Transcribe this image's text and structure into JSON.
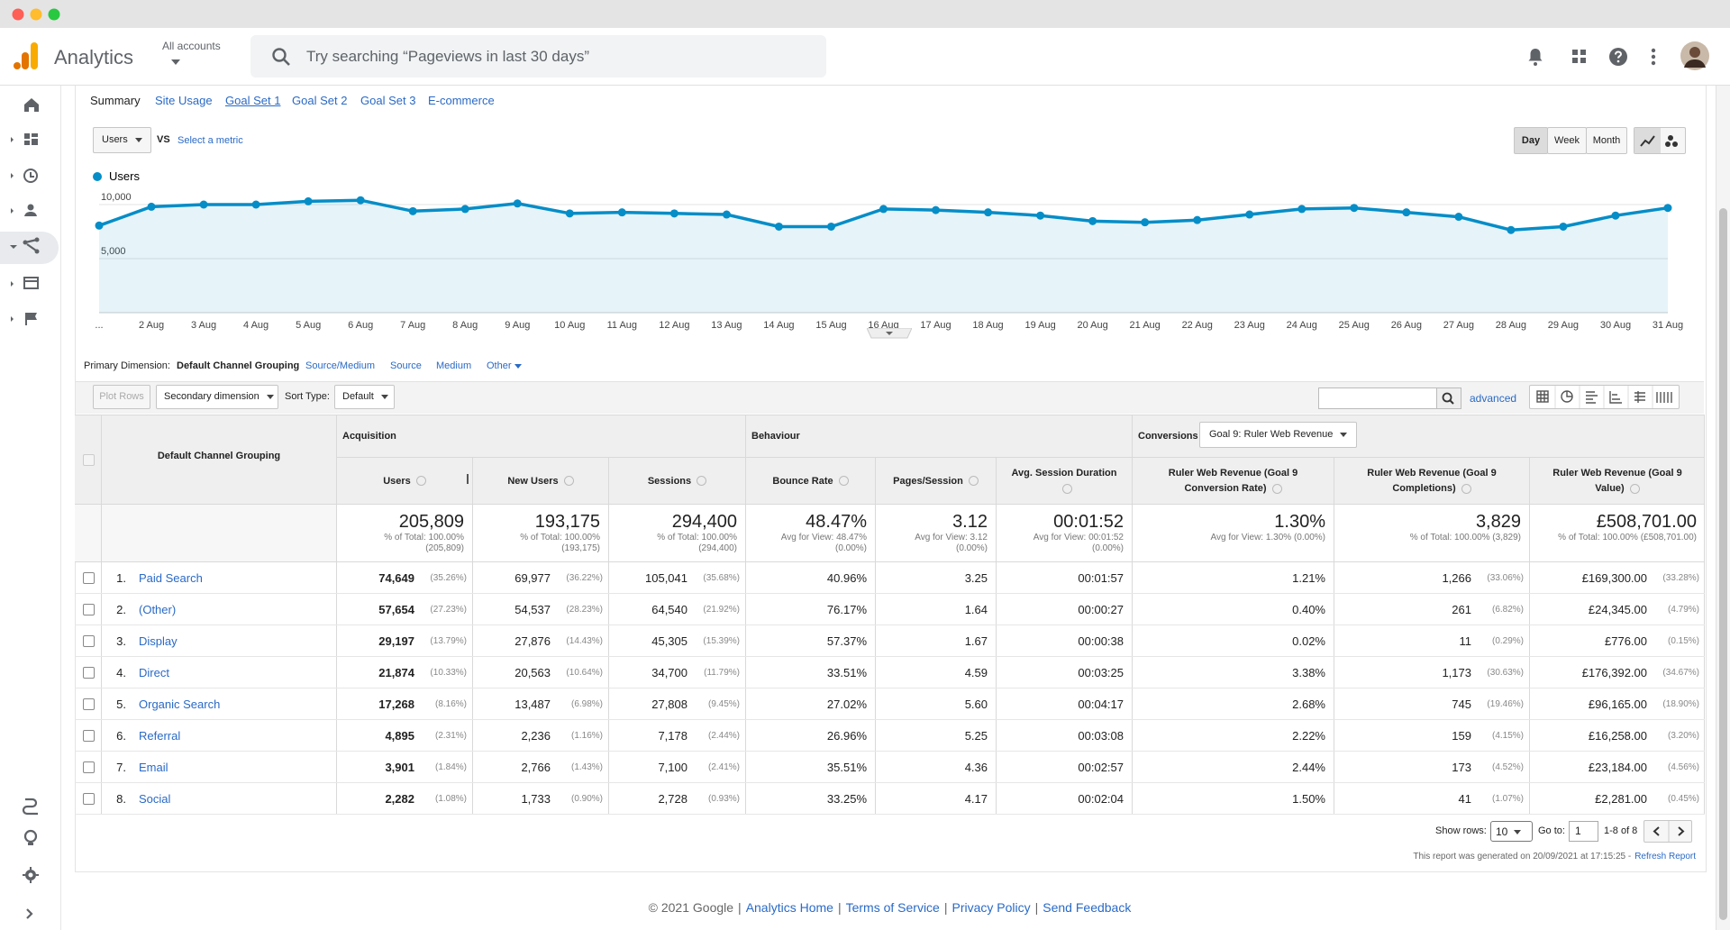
{
  "header": {
    "product": "Analytics",
    "account": "All accounts",
    "search_placeholder": "Try searching “Pageviews in last 30 days”"
  },
  "tabs": [
    "Summary",
    "Site Usage",
    "Goal Set 1",
    "Goal Set 2",
    "Goal Set 3",
    "E-commerce"
  ],
  "chart_controls": {
    "metric": "Users",
    "vs": "VS",
    "select_metric": "Select a metric",
    "periods": [
      "Day",
      "Week",
      "Month"
    ]
  },
  "chart_data": {
    "type": "line",
    "categories": [
      "...",
      "2 Aug",
      "3 Aug",
      "4 Aug",
      "5 Aug",
      "6 Aug",
      "7 Aug",
      "8 Aug",
      "9 Aug",
      "10 Aug",
      "11 Aug",
      "12 Aug",
      "13 Aug",
      "14 Aug",
      "15 Aug",
      "16 Aug",
      "17 Aug",
      "18 Aug",
      "19 Aug",
      "20 Aug",
      "21 Aug",
      "22 Aug",
      "23 Aug",
      "24 Aug",
      "25 Aug",
      "26 Aug",
      "27 Aug",
      "28 Aug",
      "29 Aug",
      "30 Aug",
      "31 Aug"
    ],
    "series": [
      {
        "name": "Users",
        "color": "#058dc7",
        "values": [
          8060,
          9800,
          10000,
          10000,
          10300,
          10400,
          9390,
          9590,
          10100,
          9180,
          9280,
          9180,
          9080,
          7960,
          7960,
          9590,
          9490,
          9280,
          8980,
          8470,
          8360,
          8570,
          9080,
          9590,
          9690,
          9280,
          8870,
          7650,
          7960,
          8980,
          9690
        ]
      }
    ],
    "ylim": [
      0,
      11000
    ],
    "yticks": [
      {
        "value": 5000,
        "label": "5,000"
      },
      {
        "value": 10000,
        "label": "10,000"
      }
    ],
    "grid": true,
    "area": true
  },
  "dimensions": {
    "label": "Primary Dimension:",
    "options": [
      "Default Channel Grouping",
      "Source/Medium",
      "Source",
      "Medium",
      "Other"
    ]
  },
  "toolbar": {
    "plot_rows": "Plot Rows",
    "secondary": "Secondary dimension",
    "sort_label": "Sort Type:",
    "sort": "Default",
    "advanced": "advanced"
  },
  "table": {
    "dimension": "Default Channel Grouping",
    "groups": [
      "Acquisition",
      "Behaviour",
      "Conversions"
    ],
    "goal": "Goal 9: Ruler Web Revenue",
    "columns": [
      "Users",
      "New Users",
      "Sessions",
      "Bounce Rate",
      "Pages/Session",
      "Avg. Session Duration",
      "Ruler Web Revenue (Goal 9 Conversion Rate)",
      "Ruler Web Revenue (Goal 9 Completions)",
      "Ruler Web Revenue (Goal 9 Value)"
    ],
    "totals": [
      {
        "value": "205,809",
        "sub": [
          "% of Total: 100.00%",
          "(205,809)"
        ]
      },
      {
        "value": "193,175",
        "sub": [
          "% of Total: 100.00%",
          "(193,175)"
        ]
      },
      {
        "value": "294,400",
        "sub": [
          "% of Total: 100.00%",
          "(294,400)"
        ]
      },
      {
        "value": "48.47%",
        "sub": [
          "Avg for View: 48.47%",
          "(0.00%)"
        ]
      },
      {
        "value": "3.12",
        "sub": [
          "Avg for View: 3.12",
          "(0.00%)"
        ]
      },
      {
        "value": "00:01:52",
        "sub": [
          "Avg for View: 00:01:52",
          "(0.00%)"
        ]
      },
      {
        "value": "1.30%",
        "sub": [
          "Avg for View: 1.30% (0.00%)"
        ]
      },
      {
        "value": "3,829",
        "sub": [
          "% of Total: 100.00% (3,829)"
        ]
      },
      {
        "value": "£508,701.00",
        "sub": [
          "% of Total: 100.00% (£508,701.00)"
        ]
      }
    ],
    "rows": [
      {
        "index": "1.",
        "name": "Paid Search",
        "cells": [
          [
            "74,649",
            "(35.26%)"
          ],
          [
            "69,977",
            "(36.22%)"
          ],
          [
            "105,041",
            "(35.68%)"
          ],
          [
            "40.96%"
          ],
          [
            "3.25"
          ],
          [
            "00:01:57"
          ],
          [
            "1.21%"
          ],
          [
            "1,266",
            "(33.06%)"
          ],
          [
            "£169,300.00",
            "(33.28%)"
          ]
        ]
      },
      {
        "index": "2.",
        "name": "(Other)",
        "cells": [
          [
            "57,654",
            "(27.23%)"
          ],
          [
            "54,537",
            "(28.23%)"
          ],
          [
            "64,540",
            "(21.92%)"
          ],
          [
            "76.17%"
          ],
          [
            "1.64"
          ],
          [
            "00:00:27"
          ],
          [
            "0.40%"
          ],
          [
            "261",
            "(6.82%)"
          ],
          [
            "£24,345.00",
            "(4.79%)"
          ]
        ]
      },
      {
        "index": "3.",
        "name": "Display",
        "cells": [
          [
            "29,197",
            "(13.79%)"
          ],
          [
            "27,876",
            "(14.43%)"
          ],
          [
            "45,305",
            "(15.39%)"
          ],
          [
            "57.37%"
          ],
          [
            "1.67"
          ],
          [
            "00:00:38"
          ],
          [
            "0.02%"
          ],
          [
            "11",
            "(0.29%)"
          ],
          [
            "£776.00",
            "(0.15%)"
          ]
        ]
      },
      {
        "index": "4.",
        "name": "Direct",
        "cells": [
          [
            "21,874",
            "(10.33%)"
          ],
          [
            "20,563",
            "(10.64%)"
          ],
          [
            "34,700",
            "(11.79%)"
          ],
          [
            "33.51%"
          ],
          [
            "4.59"
          ],
          [
            "00:03:25"
          ],
          [
            "3.38%"
          ],
          [
            "1,173",
            "(30.63%)"
          ],
          [
            "£176,392.00",
            "(34.67%)"
          ]
        ]
      },
      {
        "index": "5.",
        "name": "Organic Search",
        "cells": [
          [
            "17,268",
            "(8.16%)"
          ],
          [
            "13,487",
            "(6.98%)"
          ],
          [
            "27,808",
            "(9.45%)"
          ],
          [
            "27.02%"
          ],
          [
            "5.60"
          ],
          [
            "00:04:17"
          ],
          [
            "2.68%"
          ],
          [
            "745",
            "(19.46%)"
          ],
          [
            "£96,165.00",
            "(18.90%)"
          ]
        ]
      },
      {
        "index": "6.",
        "name": "Referral",
        "cells": [
          [
            "4,895",
            "(2.31%)"
          ],
          [
            "2,236",
            "(1.16%)"
          ],
          [
            "7,178",
            "(2.44%)"
          ],
          [
            "26.96%"
          ],
          [
            "5.25"
          ],
          [
            "00:03:08"
          ],
          [
            "2.22%"
          ],
          [
            "159",
            "(4.15%)"
          ],
          [
            "£16,258.00",
            "(3.20%)"
          ]
        ]
      },
      {
        "index": "7.",
        "name": "Email",
        "cells": [
          [
            "3,901",
            "(1.84%)"
          ],
          [
            "2,766",
            "(1.43%)"
          ],
          [
            "7,100",
            "(2.41%)"
          ],
          [
            "35.51%"
          ],
          [
            "4.36"
          ],
          [
            "00:02:57"
          ],
          [
            "2.44%"
          ],
          [
            "173",
            "(4.52%)"
          ],
          [
            "£23,184.00",
            "(4.56%)"
          ]
        ]
      },
      {
        "index": "8.",
        "name": "Social",
        "cells": [
          [
            "2,282",
            "(1.08%)"
          ],
          [
            "1,733",
            "(0.90%)"
          ],
          [
            "2,728",
            "(0.93%)"
          ],
          [
            "33.25%"
          ],
          [
            "4.17"
          ],
          [
            "00:02:04"
          ],
          [
            "1.50%"
          ],
          [
            "41",
            "(1.07%)"
          ],
          [
            "£2,281.00",
            "(0.45%)"
          ]
        ]
      }
    ]
  },
  "pagination": {
    "show_rows": "Show rows:",
    "rows": "10",
    "goto": "Go to:",
    "page": "1",
    "range": "1-8 of 8",
    "generated": "This report was generated on 20/09/2021 at 17:15:25 -",
    "refresh": "Refresh Report"
  },
  "footer": {
    "copyright": "© 2021 Google",
    "separator": "|",
    "links": [
      "Analytics Home",
      "Terms of Service",
      "Privacy Policy",
      "Send Feedback"
    ]
  }
}
